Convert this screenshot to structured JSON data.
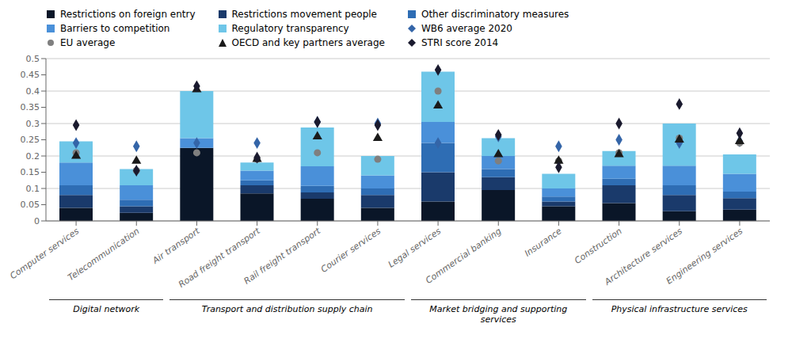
{
  "chart_data": {
    "type": "bar",
    "stacked": true,
    "grid": true,
    "legend": "top",
    "categories": [
      "Computer services",
      "Telecommunication",
      "Air transport",
      "Road freight transport",
      "Rail freight transport",
      "Courier services",
      "Legal services",
      "Commercial banking",
      "Insurance",
      "Construction",
      "Architecture services",
      "Engineering services"
    ],
    "series": [
      {
        "name": "Restrictions on foreign entry",
        "type": "bar",
        "color": "#0a1628",
        "values": [
          0.04,
          0.025,
          0.225,
          0.085,
          0.068,
          0.04,
          0.06,
          0.095,
          0.045,
          0.055,
          0.03,
          0.035
        ]
      },
      {
        "name": "Restrictions movement people",
        "type": "bar",
        "color": "#1a3a6b",
        "values": [
          0.04,
          0.02,
          0.0,
          0.025,
          0.02,
          0.04,
          0.09,
          0.04,
          0.015,
          0.055,
          0.05,
          0.035
        ]
      },
      {
        "name": "Other discriminatory measures",
        "type": "bar",
        "color": "#2e6db4",
        "values": [
          0.03,
          0.02,
          0.0,
          0.015,
          0.02,
          0.02,
          0.09,
          0.025,
          0.015,
          0.02,
          0.03,
          0.02
        ]
      },
      {
        "name": "Barriers to competition",
        "type": "bar",
        "color": "#4a90d9",
        "values": [
          0.07,
          0.045,
          0.03,
          0.03,
          0.06,
          0.04,
          0.065,
          0.04,
          0.025,
          0.04,
          0.06,
          0.055
        ]
      },
      {
        "name": "Regulatory transparency",
        "type": "bar",
        "color": "#6ec6e8",
        "values": [
          0.065,
          0.05,
          0.145,
          0.025,
          0.12,
          0.06,
          0.155,
          0.055,
          0.045,
          0.045,
          0.13,
          0.06
        ]
      },
      {
        "name": "WB6 average 2020",
        "type": "scatter",
        "marker": "diamond",
        "color": "#3465a8",
        "values": [
          0.24,
          0.23,
          0.24,
          0.24,
          0.305,
          0.3,
          0.24,
          0.26,
          0.23,
          0.25,
          0.24,
          0.245
        ]
      },
      {
        "name": "EU average",
        "type": "scatter",
        "marker": "circle",
        "color": "#7f7f7f",
        "values": [
          0.21,
          0.155,
          0.21,
          0.19,
          0.21,
          0.19,
          0.4,
          0.185,
          0.185,
          0.21,
          0.255,
          0.24
        ]
      },
      {
        "name": "OECD and key partners average",
        "type": "scatter",
        "marker": "triangle",
        "color": "#1a1a1a",
        "values": [
          0.2,
          0.185,
          0.405,
          0.19,
          0.26,
          0.255,
          0.355,
          0.205,
          0.185,
          0.205,
          0.25,
          0.245
        ]
      },
      {
        "name": "STRI score 2014",
        "type": "scatter",
        "marker": "diamond",
        "color": "#1a1a2e",
        "values": [
          0.295,
          0.155,
          0.415,
          0.195,
          0.305,
          0.295,
          0.465,
          0.265,
          0.165,
          0.3,
          0.36,
          0.27
        ]
      }
    ],
    "groups": [
      {
        "name": "Digital network",
        "categories": [
          "Computer services",
          "Telecommunication"
        ]
      },
      {
        "name": "Transport and distribution supply chain",
        "categories": [
          "Air transport",
          "Road freight transport",
          "Rail freight transport",
          "Courier services"
        ]
      },
      {
        "name": "Market bridging and supporting services",
        "categories": [
          "Legal services",
          "Commercial banking",
          "Insurance"
        ]
      },
      {
        "name": "Physical infrastructure services",
        "categories": [
          "Construction",
          "Architecture services",
          "Engineering services"
        ]
      }
    ],
    "ylim": [
      0,
      0.5
    ],
    "yticks": [
      0,
      0.05,
      0.1,
      0.15,
      0.2,
      0.25,
      0.3,
      0.35,
      0.4,
      0.45,
      0.5
    ]
  }
}
